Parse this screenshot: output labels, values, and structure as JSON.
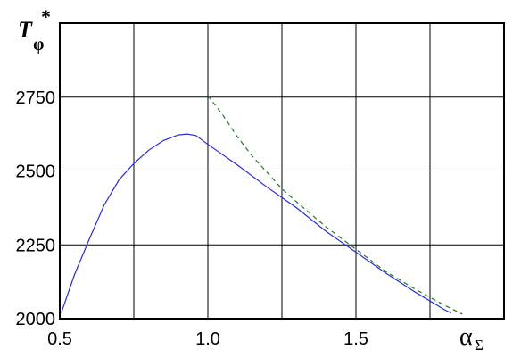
{
  "chart_data": {
    "type": "line",
    "title": "",
    "ylabel": {
      "main": "T",
      "sub": "φ",
      "sup": "*"
    },
    "xlabel": {
      "main": "α",
      "sub": "Σ"
    },
    "xlim": [
      0.5,
      2.0
    ],
    "ylim": [
      2000,
      3000
    ],
    "grid": true,
    "x_ticks": [
      0.5,
      0.75,
      1.0,
      1.25,
      1.5,
      1.75,
      2.0
    ],
    "y_ticks": [
      2000,
      2250,
      2500,
      2750,
      3000
    ],
    "x_tick_labels": [
      "0.5",
      "1.0",
      "1.5"
    ],
    "x_tick_label_values": [
      0.5,
      1.0,
      1.5
    ],
    "y_tick_labels": [
      "2000",
      "2250",
      "2500",
      "2750"
    ],
    "y_tick_label_values": [
      2000,
      2250,
      2500,
      2750
    ],
    "series": [
      {
        "color": "#2b2bd8",
        "dash": "solid",
        "x": [
          0.505,
          0.55,
          0.6,
          0.65,
          0.7,
          0.75,
          0.8,
          0.85,
          0.9,
          0.93,
          0.96,
          1.0,
          1.1,
          1.2,
          1.3,
          1.4,
          1.5,
          1.6,
          1.7,
          1.8,
          1.82
        ],
        "y": [
          2020,
          2150,
          2270,
          2385,
          2470,
          2525,
          2570,
          2603,
          2622,
          2625,
          2620,
          2590,
          2520,
          2445,
          2375,
          2295,
          2225,
          2155,
          2090,
          2030,
          2020
        ]
      },
      {
        "color": "#1f7a1f",
        "dash": "dashed",
        "x": [
          1.0,
          1.05,
          1.1,
          1.15,
          1.2,
          1.25,
          1.3,
          1.4,
          1.5,
          1.6,
          1.7,
          1.8,
          1.86
        ],
        "y": [
          2755,
          2690,
          2615,
          2550,
          2495,
          2440,
          2395,
          2310,
          2235,
          2160,
          2100,
          2045,
          2015
        ]
      }
    ]
  }
}
